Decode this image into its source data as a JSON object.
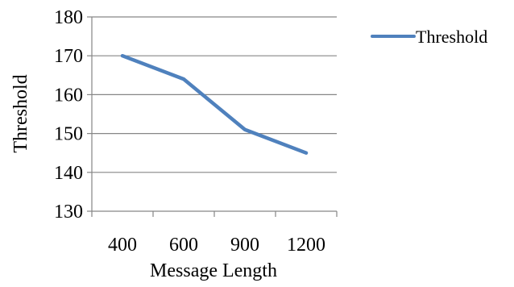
{
  "chart_data": {
    "type": "line",
    "title": "",
    "xlabel": "Message Length",
    "ylabel": "Threshold",
    "categories": [
      "400",
      "600",
      "900",
      "1200"
    ],
    "series": [
      {
        "name": "Threshold",
        "values": [
          170,
          164,
          151,
          145
        ],
        "color": "#4F81BD"
      }
    ],
    "ylim": [
      130,
      180
    ],
    "y_ticks": [
      130,
      140,
      150,
      160,
      170,
      180
    ],
    "grid": true,
    "legend_position": "right"
  }
}
